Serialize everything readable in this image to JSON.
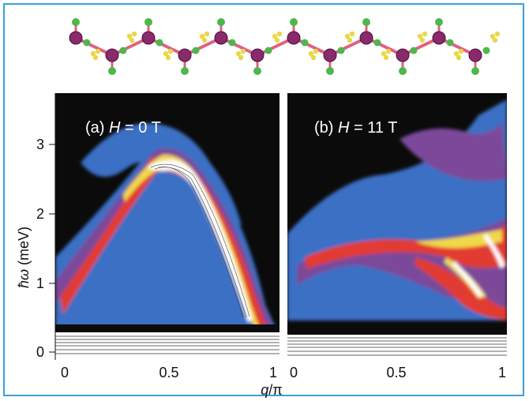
{
  "figure": {
    "panels": [
      {
        "label_prefix": "(a) ",
        "label_var": "H",
        "label_suffix": " = 0 T"
      },
      {
        "label_prefix": "(b) ",
        "label_var": "H",
        "label_suffix": " = 11 T"
      }
    ],
    "y_axis": {
      "label_var": "ħω",
      "label_unit": " (meV)",
      "ticks": [
        "0",
        "1",
        "2",
        "3"
      ]
    },
    "x_axis": {
      "label_var": "q",
      "label_unit": "/π",
      "ticks_a": [
        "0",
        "0.5",
        "1"
      ],
      "ticks_b": [
        "0",
        "0.5",
        "1"
      ]
    },
    "colors": {
      "frame": "#3aa0d8",
      "background": "#0b0b0b",
      "level1": "#3a6fc4",
      "level2": "#7b4a9a",
      "level3": "#e23a30",
      "level4": "#f0d84a",
      "level5": "#ffffff",
      "atom_metal": "#8a2a6a",
      "atom_ligand": "#4cb84c",
      "atom_small": "#e8d84a",
      "bond": "#e06080"
    }
  }
}
